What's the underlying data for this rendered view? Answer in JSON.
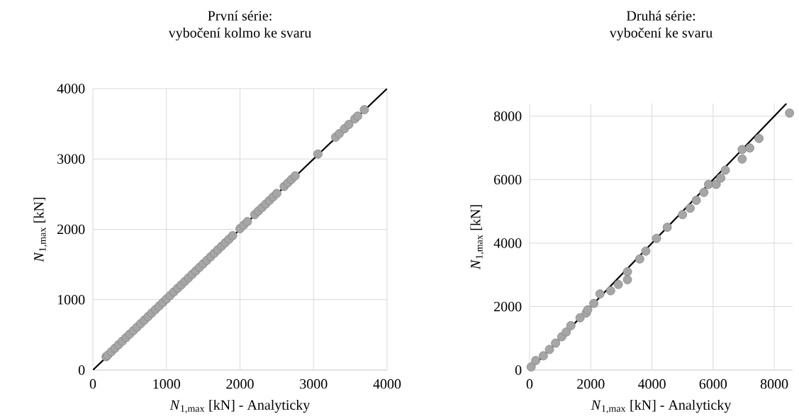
{
  "chart_data": [
    {
      "type": "scatter",
      "title": "První série:",
      "subtitle": "vybočení kolmo ke svaru",
      "xlabel": "*N*$_{1,max}$ [kN] - Analyticky",
      "ylabel": "*N*$_{1,max}$ [kN]",
      "xlim": [
        0,
        4000
      ],
      "ylim": [
        0,
        4000
      ],
      "xticks": [
        0,
        1000,
        2000,
        3000,
        4000
      ],
      "yticks": [
        0,
        1000,
        2000,
        3000,
        4000
      ],
      "grid": true,
      "series": [
        {
          "color": "#a6a6a6",
          "x": [
            180,
            200,
            250,
            300,
            350,
            400,
            450,
            500,
            550,
            600,
            650,
            700,
            750,
            800,
            850,
            900,
            950,
            1000,
            1050,
            1100,
            1150,
            1200,
            1250,
            1300,
            1350,
            1400,
            1450,
            1500,
            1550,
            1600,
            1650,
            1700,
            1750,
            1800,
            1850,
            1900,
            2000,
            2050,
            2100,
            2200,
            2250,
            2300,
            2350,
            2400,
            2450,
            2500,
            2600,
            2650,
            2700,
            2750,
            3060,
            3300,
            3350,
            3420,
            3480,
            3560,
            3600,
            3690
          ],
          "values": [
            190,
            210,
            260,
            310,
            360,
            410,
            460,
            510,
            560,
            610,
            660,
            710,
            760,
            810,
            860,
            910,
            960,
            1010,
            1060,
            1110,
            1160,
            1210,
            1260,
            1310,
            1360,
            1410,
            1460,
            1510,
            1560,
            1610,
            1660,
            1710,
            1760,
            1810,
            1860,
            1910,
            2010,
            2060,
            2110,
            2210,
            2260,
            2310,
            2360,
            2410,
            2460,
            2510,
            2610,
            2660,
            2710,
            2760,
            3070,
            3310,
            3360,
            3430,
            3490,
            3570,
            3610,
            3700
          ]
        },
        {
          "type": "line",
          "color": "#000000",
          "marker": "none",
          "x": [
            0,
            4000
          ],
          "values": [
            0,
            4000
          ]
        }
      ]
    },
    {
      "type": "scatter",
      "title": "Druhá série:",
      "subtitle": "vybočení ke svaru",
      "xlabel": "*N*$_{1,max}$ [kN] - Analyticky",
      "ylabel": "*N*$_{1,max}$ [kN]",
      "xlim": [
        0,
        8600
      ],
      "ylim": [
        0,
        8400
      ],
      "xticks": [
        0,
        2000,
        4000,
        6000,
        8000
      ],
      "yticks": [
        0,
        2000,
        4000,
        6000,
        8000
      ],
      "grid": true,
      "series": [
        {
          "color": "#a6a6a6",
          "x": [
            50,
            200,
            450,
            650,
            850,
            1050,
            1200,
            1350,
            1650,
            1850,
            1900,
            2100,
            2300,
            2650,
            2900,
            3200,
            3200,
            3600,
            3800,
            4150,
            4500,
            5000,
            5250,
            5450,
            5700,
            5850,
            6100,
            6250,
            6400,
            6950,
            6950,
            7200,
            7500,
            8500
          ],
          "values": [
            100,
            300,
            450,
            650,
            850,
            1050,
            1200,
            1400,
            1650,
            1800,
            1900,
            2100,
            2400,
            2500,
            2700,
            3100,
            2850,
            3500,
            3750,
            4150,
            4500,
            4900,
            5100,
            5350,
            5600,
            5850,
            5850,
            6050,
            6300,
            6650,
            6950,
            7000,
            7300,
            8100
          ]
        },
        {
          "type": "line",
          "color": "#000000",
          "marker": "none",
          "x": [
            0,
            8400
          ],
          "values": [
            0,
            8400
          ]
        }
      ]
    }
  ]
}
